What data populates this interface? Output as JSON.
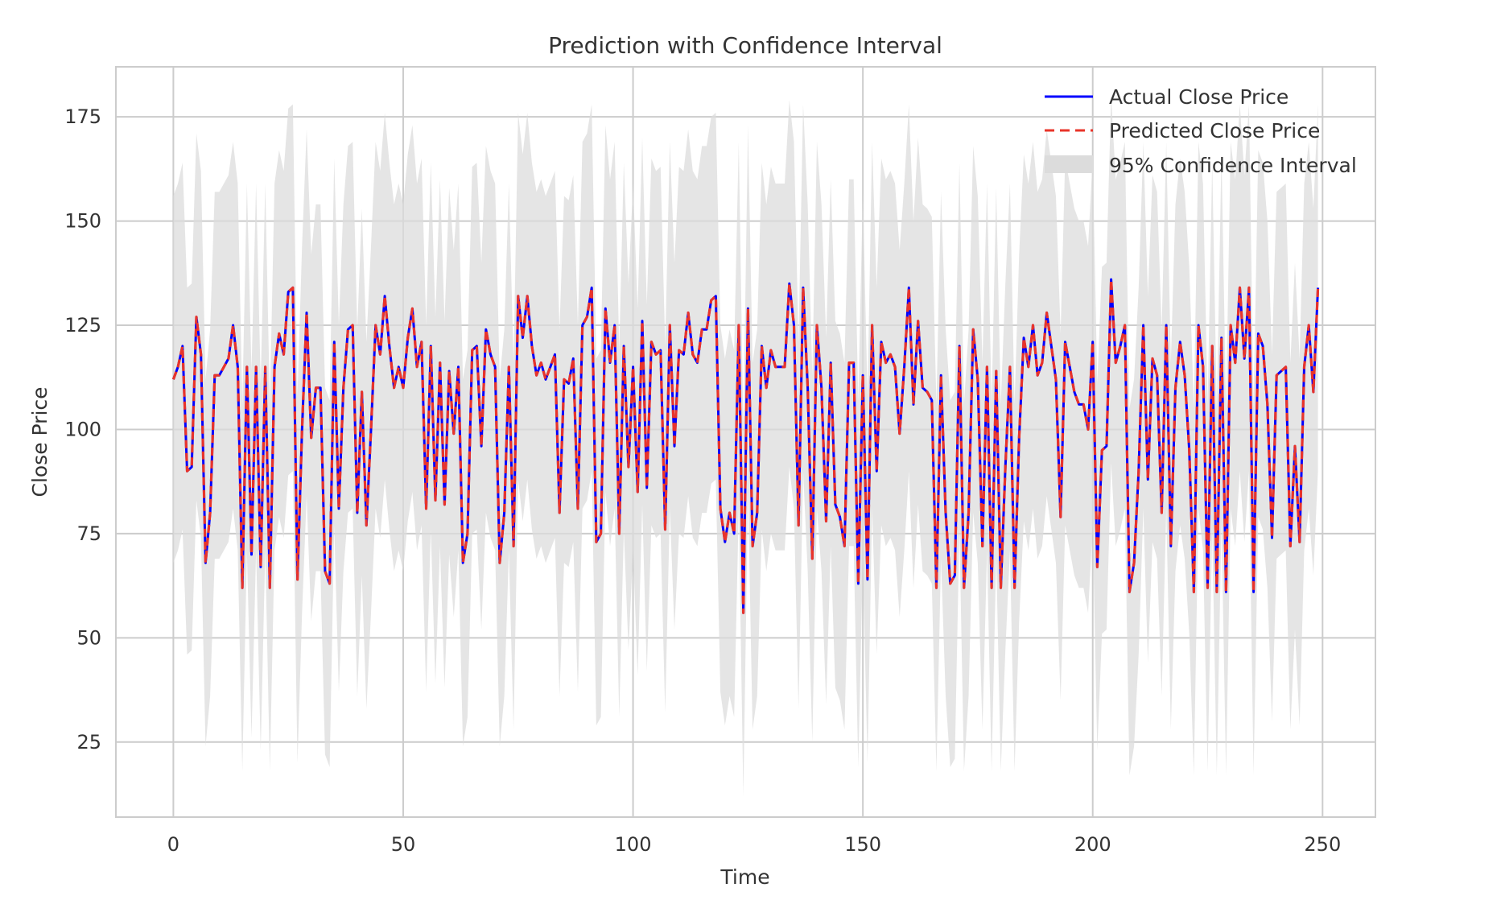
{
  "chart_data": {
    "type": "line",
    "title": "Prediction with Confidence Interval",
    "xlabel": "Time",
    "ylabel": "Close Price",
    "xlim": [
      -12.5,
      261.5
    ],
    "ylim": [
      7,
      187
    ],
    "xticks": [
      0,
      50,
      100,
      150,
      200,
      250
    ],
    "yticks": [
      25,
      50,
      75,
      100,
      125,
      150,
      175
    ],
    "grid": true,
    "legend_position": "top-right",
    "x": [
      0,
      1,
      2,
      3,
      4,
      5,
      6,
      7,
      8,
      9,
      10,
      11,
      12,
      13,
      14,
      15,
      16,
      17,
      18,
      19,
      20,
      21,
      22,
      23,
      24,
      25,
      26,
      27,
      28,
      29,
      30,
      31,
      32,
      33,
      34,
      35,
      36,
      37,
      38,
      39,
      40,
      41,
      42,
      43,
      44,
      45,
      46,
      47,
      48,
      49,
      50,
      51,
      52,
      53,
      54,
      55,
      56,
      57,
      58,
      59,
      60,
      61,
      62,
      63,
      64,
      65,
      66,
      67,
      68,
      69,
      70,
      71,
      72,
      73,
      74,
      75,
      76,
      77,
      78,
      79,
      80,
      81,
      82,
      83,
      84,
      85,
      86,
      87,
      88,
      89,
      90,
      91,
      92,
      93,
      94,
      95,
      96,
      97,
      98,
      99,
      100,
      101,
      102,
      103,
      104,
      105,
      106,
      107,
      108,
      109,
      110,
      111,
      112,
      113,
      114,
      115,
      116,
      117,
      118,
      119,
      120,
      121,
      122,
      123,
      124,
      125,
      126,
      127,
      128,
      129,
      130,
      131,
      132,
      133,
      134,
      135,
      136,
      137,
      138,
      139,
      140,
      141,
      142,
      143,
      144,
      145,
      146,
      147,
      148,
      149,
      150,
      151,
      152,
      153,
      154,
      155,
      156,
      157,
      158,
      159,
      160,
      161,
      162,
      163,
      164,
      165,
      166,
      167,
      168,
      169,
      170,
      171,
      172,
      173,
      174,
      175,
      176,
      177,
      178,
      179,
      180,
      181,
      182,
      183,
      184,
      185,
      186,
      187,
      188,
      189,
      190,
      191,
      192,
      193,
      194,
      195,
      196,
      197,
      198,
      199,
      200,
      201,
      202,
      203,
      204,
      205,
      206,
      207,
      208,
      209,
      210,
      211,
      212,
      213,
      214,
      215,
      216,
      217,
      218,
      219,
      220,
      221,
      222,
      223,
      224,
      225,
      226,
      227,
      228,
      229,
      230,
      231,
      232,
      233,
      234,
      235,
      236,
      237,
      238,
      239,
      240,
      241,
      242,
      243,
      244,
      245,
      246,
      247,
      248,
      249
    ],
    "series": [
      {
        "name": "Actual Close Price",
        "color": "#0000ff",
        "style": "solid",
        "values": [
          112,
          115,
          120,
          90,
          91,
          127,
          118,
          68,
          80,
          113,
          113,
          115,
          117,
          125,
          115,
          62,
          115,
          70,
          115,
          67,
          115,
          62,
          115,
          123,
          118,
          133,
          134,
          64,
          100,
          128,
          98,
          110,
          110,
          66,
          63,
          121,
          81,
          110,
          124,
          125,
          80,
          109,
          77,
          100,
          125,
          118,
          132,
          120,
          110,
          115,
          110,
          122,
          129,
          115,
          121,
          81,
          120,
          83,
          116,
          82,
          114,
          99,
          115,
          68,
          75,
          119,
          120,
          96,
          124,
          118,
          115,
          68,
          80,
          115,
          72,
          132,
          122,
          132,
          120,
          113,
          116,
          112,
          115,
          118,
          80,
          112,
          111,
          117,
          81,
          125,
          127,
          134,
          73,
          75,
          129,
          116,
          125,
          75,
          120,
          91,
          115,
          85,
          126,
          86,
          121,
          118,
          119,
          76,
          125,
          96,
          119,
          118,
          128,
          118,
          116,
          124,
          124,
          131,
          132,
          81,
          73,
          80,
          75,
          125,
          56,
          129,
          72,
          80,
          120,
          110,
          119,
          115,
          115,
          115,
          135,
          125,
          77,
          134,
          110,
          69,
          125,
          110,
          78,
          116,
          82,
          79,
          72,
          116,
          116,
          63,
          113,
          64,
          125,
          90,
          121,
          116,
          118,
          115,
          99,
          115,
          134,
          106,
          126,
          110,
          109,
          107,
          62,
          113,
          80,
          63,
          65,
          120,
          62,
          80,
          124,
          112,
          72,
          115,
          62,
          114,
          62,
          91,
          115,
          62,
          98,
          122,
          115,
          125,
          113,
          116,
          128,
          120,
          112,
          79,
          121,
          115,
          109,
          106,
          106,
          100,
          121,
          67,
          95,
          96,
          136,
          116,
          120,
          125,
          61,
          68,
          90,
          125,
          88,
          117,
          113,
          80,
          125,
          72,
          110,
          121,
          113,
          95,
          61,
          125,
          115,
          62,
          120,
          61,
          122,
          61,
          125,
          116,
          134,
          117,
          134,
          61,
          123,
          120,
          106,
          74,
          113,
          114,
          115,
          72,
          96,
          73,
          115,
          125,
          109,
          134
        ]
      },
      {
        "name": "Predicted Close Price",
        "color": "#e8342a",
        "style": "dashed",
        "values": [
          112,
          115,
          120,
          90,
          91,
          127,
          118,
          68,
          80,
          113,
          113,
          115,
          117,
          125,
          115,
          62,
          115,
          70,
          115,
          67,
          115,
          62,
          115,
          123,
          118,
          133,
          134,
          64,
          100,
          128,
          98,
          110,
          110,
          66,
          63,
          121,
          81,
          110,
          124,
          125,
          80,
          109,
          77,
          100,
          125,
          118,
          132,
          120,
          110,
          115,
          110,
          122,
          129,
          115,
          121,
          81,
          120,
          83,
          116,
          82,
          114,
          99,
          115,
          68,
          75,
          119,
          120,
          96,
          124,
          118,
          115,
          68,
          80,
          115,
          72,
          132,
          122,
          132,
          120,
          113,
          116,
          112,
          115,
          118,
          80,
          112,
          111,
          117,
          81,
          125,
          127,
          134,
          73,
          75,
          129,
          116,
          125,
          75,
          120,
          91,
          115,
          85,
          126,
          86,
          121,
          118,
          119,
          76,
          125,
          96,
          119,
          118,
          128,
          118,
          116,
          124,
          124,
          131,
          132,
          81,
          73,
          80,
          75,
          125,
          56,
          129,
          72,
          80,
          120,
          110,
          119,
          115,
          115,
          115,
          135,
          125,
          77,
          134,
          110,
          69,
          125,
          110,
          78,
          116,
          82,
          79,
          72,
          116,
          116,
          63,
          113,
          64,
          125,
          90,
          121,
          116,
          118,
          115,
          99,
          115,
          134,
          106,
          126,
          110,
          109,
          107,
          62,
          113,
          80,
          63,
          65,
          120,
          62,
          80,
          124,
          112,
          72,
          115,
          62,
          114,
          62,
          91,
          115,
          62,
          98,
          122,
          115,
          125,
          113,
          116,
          128,
          120,
          112,
          79,
          121,
          115,
          109,
          106,
          106,
          100,
          121,
          67,
          95,
          96,
          136,
          116,
          120,
          125,
          61,
          68,
          90,
          125,
          88,
          117,
          113,
          80,
          125,
          72,
          110,
          121,
          113,
          95,
          61,
          125,
          115,
          62,
          120,
          61,
          122,
          61,
          125,
          116,
          134,
          117,
          134,
          61,
          123,
          120,
          106,
          74,
          113,
          114,
          115,
          72,
          96,
          73,
          115,
          125,
          109,
          134
        ]
      }
    ],
    "confidence_interval": {
      "name": "95% Confidence Interval",
      "color": "#dcdcdc",
      "half_width": 44
    }
  }
}
